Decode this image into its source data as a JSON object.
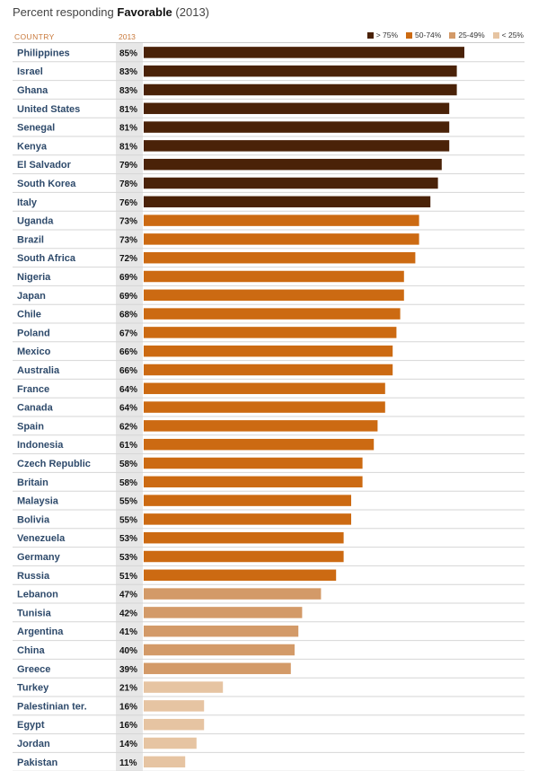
{
  "title": {
    "prefix": "Percent responding",
    "emphasis": "Favorable",
    "suffix": "(2013)"
  },
  "header": {
    "country": "COUNTRY",
    "year": "2013"
  },
  "legend": [
    {
      "label": "> 75%",
      "color": "#4a2208"
    },
    {
      "label": "50-74%",
      "color": "#cc6a12"
    },
    {
      "label": "25-49%",
      "color": "#d39a68"
    },
    {
      "label": "< 25%",
      "color": "#e6c4a2"
    }
  ],
  "chart_data": {
    "type": "bar",
    "orientation": "horizontal",
    "title": "Percent responding Favorable (2013)",
    "categories": [
      "Philippines",
      "Israel",
      "Ghana",
      "United States",
      "Senegal",
      "Kenya",
      "El Salvador",
      "South Korea",
      "Italy",
      "Uganda",
      "Brazil",
      "South Africa",
      "Nigeria",
      "Japan",
      "Chile",
      "Poland",
      "Mexico",
      "Australia",
      "France",
      "Canada",
      "Spain",
      "Indonesia",
      "Czech Republic",
      "Britain",
      "Malaysia",
      "Bolivia",
      "Venezuela",
      "Germany",
      "Russia",
      "Lebanon",
      "Tunisia",
      "Argentina",
      "China",
      "Greece",
      "Turkey",
      "Palestinian ter.",
      "Egypt",
      "Jordan",
      "Pakistan"
    ],
    "values": [
      85,
      83,
      83,
      81,
      81,
      81,
      79,
      78,
      76,
      73,
      73,
      72,
      69,
      69,
      68,
      67,
      66,
      66,
      64,
      64,
      62,
      61,
      58,
      58,
      55,
      55,
      53,
      53,
      51,
      47,
      42,
      41,
      40,
      39,
      21,
      16,
      16,
      14,
      11
    ],
    "value_labels": [
      "85%",
      "83%",
      "83%",
      "81%",
      "81%",
      "81%",
      "79%",
      "78%",
      "76%",
      "73%",
      "73%",
      "72%",
      "69%",
      "69%",
      "68%",
      "67%",
      "66%",
      "66%",
      "64%",
      "64%",
      "62%",
      "61%",
      "58%",
      "58%",
      "55%",
      "55%",
      "53%",
      "53%",
      "51%",
      "47%",
      "42%",
      "41%",
      "40%",
      "39%",
      "21%",
      "16%",
      "16%",
      "14%",
      "11%"
    ],
    "xlim": [
      0,
      100
    ],
    "color_bins": [
      {
        "min": 75,
        "color": "#4a2208"
      },
      {
        "min": 50,
        "color": "#cc6a12"
      },
      {
        "min": 25,
        "color": "#d39a68"
      },
      {
        "min": 0,
        "color": "#e6c4a2"
      }
    ],
    "grid": false,
    "legend_position": "top-right"
  }
}
